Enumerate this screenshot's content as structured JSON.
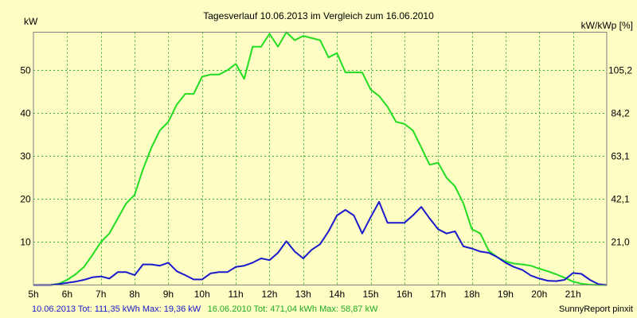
{
  "chart_data": {
    "type": "line",
    "title": "Tagesverlauf 10.06.2013 im Vergleich zum 16.06.2010",
    "ylabel_left": "kW",
    "ylabel_right": "kW/kWp [%]",
    "ylim": [
      0,
      58.87
    ],
    "yticks_left": [
      10,
      20,
      30,
      40,
      50
    ],
    "yticks_right": [
      {
        "value": 21.0,
        "label": "21,0"
      },
      {
        "value": 42.1,
        "label": "42,1"
      },
      {
        "value": 63.1,
        "label": "63,1"
      },
      {
        "value": 84.2,
        "label": "84,2"
      },
      {
        "value": 105.2,
        "label": "105,2"
      }
    ],
    "xlim": [
      5,
      22
    ],
    "xticks": [
      {
        "value": 5,
        "label": "5h"
      },
      {
        "value": 6,
        "label": "6h"
      },
      {
        "value": 7,
        "label": "7h"
      },
      {
        "value": 8,
        "label": "8h"
      },
      {
        "value": 9,
        "label": "9h"
      },
      {
        "value": 10,
        "label": "10h"
      },
      {
        "value": 11,
        "label": "11h"
      },
      {
        "value": 12,
        "label": "12h"
      },
      {
        "value": 13,
        "label": "13h"
      },
      {
        "value": 14,
        "label": "14h"
      },
      {
        "value": 15,
        "label": "15h"
      },
      {
        "value": 16,
        "label": "16h"
      },
      {
        "value": 17,
        "label": "17h"
      },
      {
        "value": 18,
        "label": "18h"
      },
      {
        "value": 19,
        "label": "19h"
      },
      {
        "value": 20,
        "label": "20h"
      },
      {
        "value": 21,
        "label": "21h"
      }
    ],
    "grid": true,
    "series": [
      {
        "name": "16.06.2010",
        "color": "#22dd22",
        "points": [
          [
            5.0,
            0
          ],
          [
            5.5,
            0
          ],
          [
            5.75,
            0.3
          ],
          [
            6.0,
            1.2
          ],
          [
            6.25,
            2.5
          ],
          [
            6.5,
            4.2
          ],
          [
            6.75,
            7
          ],
          [
            7.0,
            10
          ],
          [
            7.25,
            12
          ],
          [
            7.5,
            15.5
          ],
          [
            7.75,
            19
          ],
          [
            8.0,
            21
          ],
          [
            8.25,
            27
          ],
          [
            8.5,
            32
          ],
          [
            8.75,
            36
          ],
          [
            9.0,
            38
          ],
          [
            9.25,
            42
          ],
          [
            9.5,
            44.5
          ],
          [
            9.75,
            44.5
          ],
          [
            10.0,
            48.5
          ],
          [
            10.25,
            49
          ],
          [
            10.5,
            49
          ],
          [
            10.75,
            50
          ],
          [
            11.0,
            51.5
          ],
          [
            11.25,
            48
          ],
          [
            11.5,
            55.5
          ],
          [
            11.75,
            55.5
          ],
          [
            12.0,
            58.5
          ],
          [
            12.25,
            55.5
          ],
          [
            12.5,
            58.87
          ],
          [
            12.75,
            57
          ],
          [
            13.0,
            58
          ],
          [
            13.25,
            57.5
          ],
          [
            13.5,
            57
          ],
          [
            13.75,
            53
          ],
          [
            14.0,
            54
          ],
          [
            14.25,
            49.5
          ],
          [
            14.5,
            49.5
          ],
          [
            14.75,
            49.5
          ],
          [
            15.0,
            45.5
          ],
          [
            15.25,
            44
          ],
          [
            15.5,
            41.5
          ],
          [
            15.75,
            38
          ],
          [
            16.0,
            37.5
          ],
          [
            16.25,
            36
          ],
          [
            16.5,
            32
          ],
          [
            16.75,
            28
          ],
          [
            17.0,
            28.5
          ],
          [
            17.25,
            25
          ],
          [
            17.5,
            23
          ],
          [
            17.75,
            19
          ],
          [
            18.0,
            13
          ],
          [
            18.25,
            12
          ],
          [
            18.5,
            8
          ],
          [
            18.75,
            6.5
          ],
          [
            19.0,
            5.5
          ],
          [
            19.25,
            5
          ],
          [
            19.5,
            4.8
          ],
          [
            19.75,
            4.5
          ],
          [
            20.0,
            3.8
          ],
          [
            20.25,
            3.2
          ],
          [
            20.5,
            2.5
          ],
          [
            20.75,
            1.7
          ],
          [
            21.0,
            0.8
          ],
          [
            21.25,
            0.3
          ],
          [
            21.5,
            0.1
          ],
          [
            21.75,
            0
          ],
          [
            22.0,
            0
          ]
        ]
      },
      {
        "name": "10.06.2013",
        "color": "#1a1acc",
        "points": [
          [
            5.0,
            0
          ],
          [
            5.5,
            0
          ],
          [
            5.75,
            0.2
          ],
          [
            6.0,
            0.5
          ],
          [
            6.25,
            0.8
          ],
          [
            6.5,
            1.2
          ],
          [
            6.75,
            1.8
          ],
          [
            7.0,
            2.0
          ],
          [
            7.25,
            1.5
          ],
          [
            7.5,
            3.0
          ],
          [
            7.75,
            3.0
          ],
          [
            8.0,
            2.3
          ],
          [
            8.25,
            4.8
          ],
          [
            8.5,
            4.8
          ],
          [
            8.75,
            4.5
          ],
          [
            9.0,
            5.2
          ],
          [
            9.25,
            3.2
          ],
          [
            9.5,
            2.3
          ],
          [
            9.75,
            1.3
          ],
          [
            10.0,
            1.3
          ],
          [
            10.25,
            2.7
          ],
          [
            10.5,
            3.0
          ],
          [
            10.75,
            3.0
          ],
          [
            11.0,
            4.2
          ],
          [
            11.25,
            4.5
          ],
          [
            11.5,
            5.2
          ],
          [
            11.75,
            6.2
          ],
          [
            12.0,
            5.8
          ],
          [
            12.25,
            7.5
          ],
          [
            12.5,
            10.2
          ],
          [
            12.75,
            7.8
          ],
          [
            13.0,
            6.2
          ],
          [
            13.25,
            8.2
          ],
          [
            13.5,
            9.5
          ],
          [
            13.75,
            12.5
          ],
          [
            14.0,
            16.2
          ],
          [
            14.25,
            17.5
          ],
          [
            14.5,
            16.2
          ],
          [
            14.75,
            12
          ],
          [
            15.0,
            15.8
          ],
          [
            15.25,
            19.36
          ],
          [
            15.5,
            14.5
          ],
          [
            15.75,
            14.5
          ],
          [
            16.0,
            14.5
          ],
          [
            16.25,
            16.2
          ],
          [
            16.5,
            18.2
          ],
          [
            16.75,
            15.5
          ],
          [
            17.0,
            13
          ],
          [
            17.25,
            12
          ],
          [
            17.5,
            12.5
          ],
          [
            17.75,
            9
          ],
          [
            18.0,
            8.5
          ],
          [
            18.25,
            7.8
          ],
          [
            18.5,
            7.5
          ],
          [
            18.75,
            6.5
          ],
          [
            19.0,
            5.2
          ],
          [
            19.25,
            4.2
          ],
          [
            19.5,
            3.5
          ],
          [
            19.75,
            2.2
          ],
          [
            20.0,
            1.5
          ],
          [
            20.25,
            1.0
          ],
          [
            20.5,
            0.9
          ],
          [
            20.75,
            1.2
          ],
          [
            21.0,
            2.8
          ],
          [
            21.25,
            2.6
          ],
          [
            21.5,
            1.2
          ],
          [
            21.75,
            0.2
          ],
          [
            22.0,
            0
          ]
        ]
      }
    ],
    "legend": {
      "entry_a": {
        "text": "10.06.2013 Tot: 111,35 kWh Max: 19,36 kW",
        "color": "#1a1acc"
      },
      "entry_b": {
        "text": "16.06.2010 Tot: 471,04 kWh Max: 58,87 kW",
        "color": "#22aa22"
      },
      "placement": "bottom-left"
    },
    "credit": "SunnyReport pinxit"
  }
}
